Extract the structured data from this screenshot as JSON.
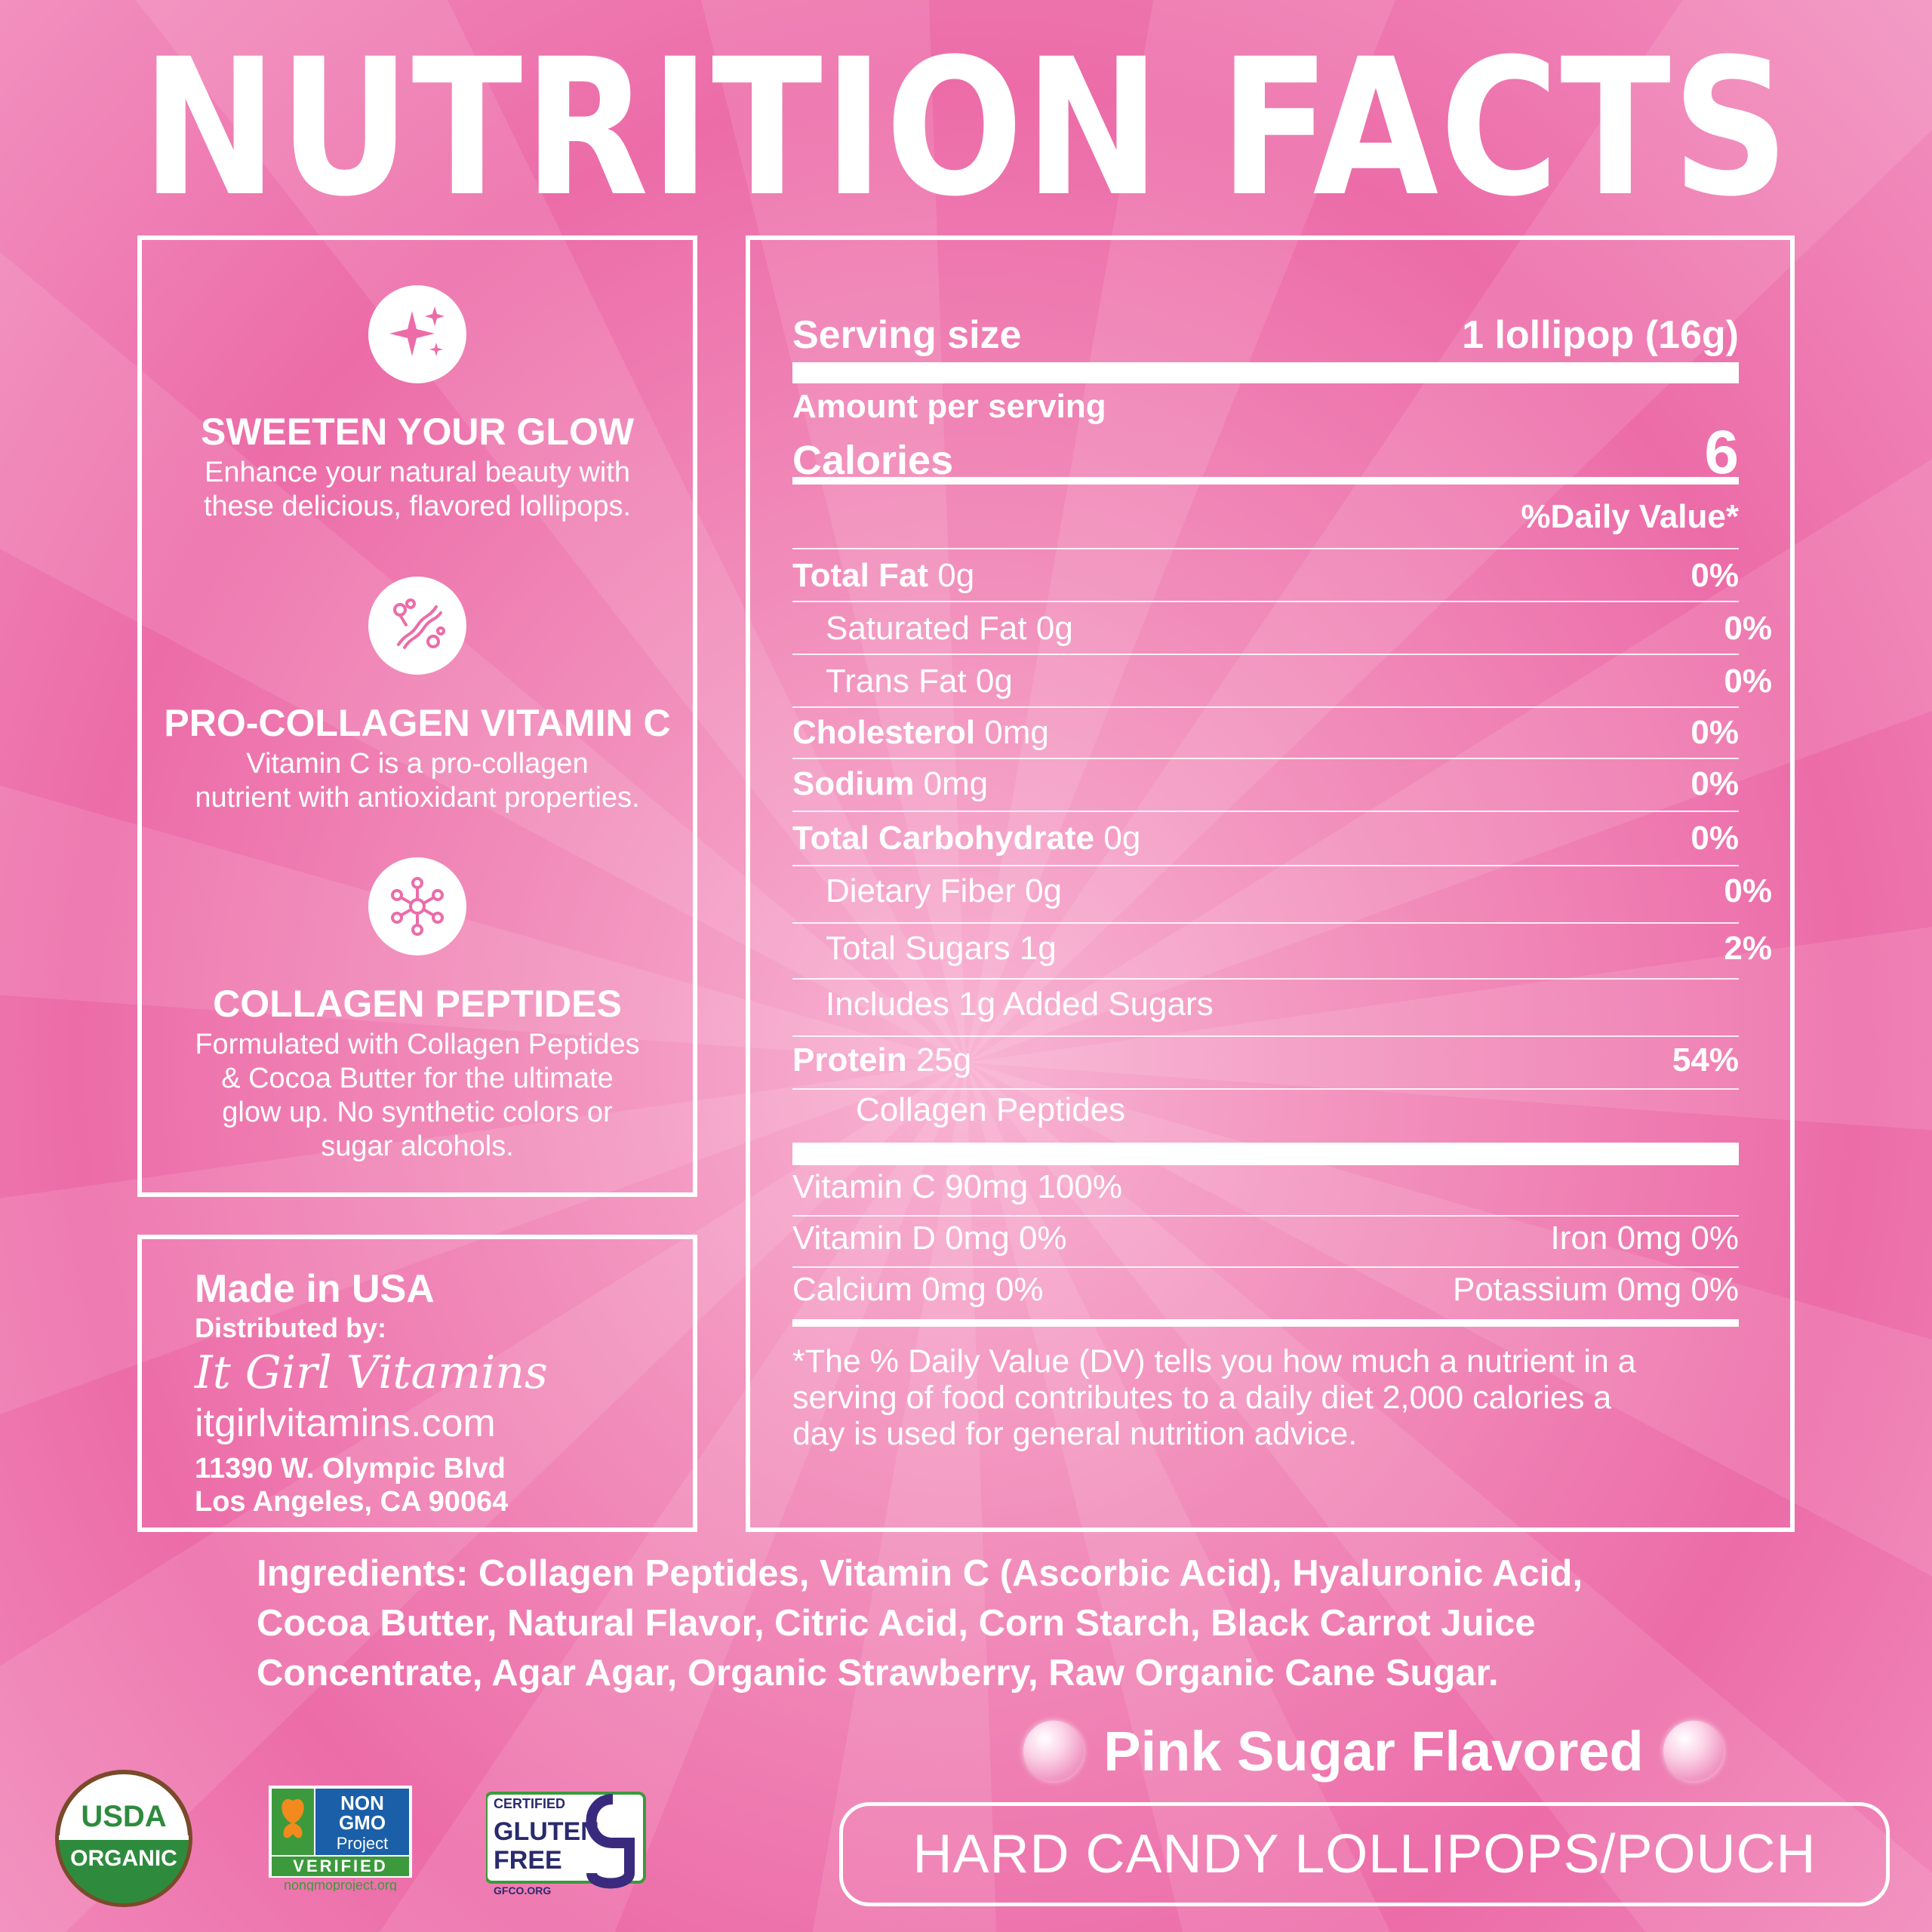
{
  "title": "NUTRITION FACTS",
  "features": [
    {
      "icon": "sparkle-icon",
      "heading": "SWEETEN YOUR GLOW",
      "line1": "Enhance your natural beauty with",
      "line2": "these delicious, flavored lollipops.",
      "line3": "",
      "line4": ""
    },
    {
      "icon": "collagen-fiber-icon",
      "heading": "PRO-COLLAGEN VITAMIN C",
      "line1": "Vitamin C is a pro-collagen",
      "line2": "nutrient with antioxidant properties.",
      "line3": "",
      "line4": ""
    },
    {
      "icon": "molecule-icon",
      "heading": "COLLAGEN PEPTIDES",
      "line1": "Formulated with Collagen Peptides",
      "line2": "& Cocoa Butter for the ultimate",
      "line3": "glow up. No synthetic colors or",
      "line4": "sugar alcohols."
    }
  ],
  "distributor": {
    "made_in": "Made in USA",
    "distributed_by": "Distributed by:",
    "brand": "It Girl Vitamins",
    "website": "itgirlvitamins.com",
    "street": "11390 W. Olympic Blvd",
    "city": "Los Angeles, CA 90064"
  },
  "nutrition": {
    "serving_label": "Serving size",
    "serving_value": "1 lollipop (16g)",
    "amount_label": "Amount per serving",
    "calories_label": "Calories",
    "calories_value": "6",
    "dv_header": "%Daily Value*",
    "rows": [
      {
        "name": "Total Fat",
        "amount": "0g",
        "dv": "0%"
      },
      {
        "name": "Saturated Fat",
        "amount": "0g",
        "dv": "0%"
      },
      {
        "name": "Trans Fat",
        "amount": "0g",
        "dv": "0%"
      },
      {
        "name": "Cholesterol",
        "amount": "0mg",
        "dv": "0%"
      },
      {
        "name": "Sodium",
        "amount": "0mg",
        "dv": "0%"
      },
      {
        "name": "Total Carbohydrate",
        "amount": "0g",
        "dv": "0%"
      },
      {
        "name": "Dietary Fiber",
        "amount": "0g",
        "dv": "0%"
      },
      {
        "name": "Total Sugars",
        "amount": "1g",
        "dv": "2%"
      },
      {
        "name": "Includes 1g Added Sugars",
        "amount": "",
        "dv": ""
      },
      {
        "name": "Protein",
        "amount": "25g",
        "dv": "54%"
      },
      {
        "name": "Collagen Peptides",
        "amount": "",
        "dv": ""
      }
    ],
    "vitamins": {
      "vitamin_c": "Vitamin C 90mg 100%",
      "vitamin_d": "Vitamin D 0mg 0%",
      "iron": "Iron 0mg 0%",
      "calcium": "Calcium 0mg 0%",
      "potassium": "Potassium 0mg 0%"
    },
    "footnote_1": "*The % Daily Value (DV) tells you how much a nutrient in a",
    "footnote_2": "serving of food contributes to a daily diet 2,000 calories a",
    "footnote_3": "day is used for general nutrition advice."
  },
  "ingredients": {
    "label": "Ingredients:",
    "line1": " Collagen Peptides, Vitamin C (Ascorbic Acid), Hyaluronic Acid,",
    "line2": "Cocoa Butter, Natural Flavor, Citric Acid, Corn Starch, Black Carrot Juice",
    "line3": "Concentrate, Agar Agar, Organic Strawberry, Raw Organic Cane Sugar."
  },
  "flavor": "Pink Sugar Flavored",
  "product_type": "HARD CANDY LOLLIPOPS/POUCH",
  "badges": {
    "usda_1": "USDA",
    "usda_2": "ORGANIC",
    "nongmo_1": "NON",
    "nongmo_2": "GMO",
    "nongmo_3": "Project",
    "nongmo_4": "VERIFIED",
    "nongmo_url": "nongmoproject.org",
    "gf_1": "CERTIFIED",
    "gf_2": "GLUTEN",
    "gf_3": "FREE",
    "gf_url": "GFCO.ORG"
  },
  "colors": {
    "accent": "#ec6ca8",
    "text": "#ffffff",
    "usda_green": "#2e8b3e",
    "usda_brown": "#7a4a2a",
    "nongmo_blue": "#1a5fa8",
    "nongmo_green": "#3c9a3c"
  }
}
